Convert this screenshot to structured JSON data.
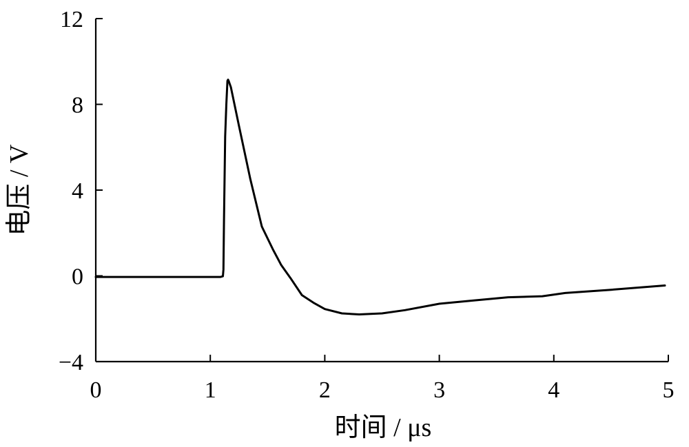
{
  "chart_data": {
    "type": "line",
    "xlabel": "时间 / μs",
    "ylabel": "电压 / V",
    "xlim": [
      0,
      5
    ],
    "ylim": [
      -4,
      12
    ],
    "xticks": [
      0,
      1,
      2,
      3,
      4,
      5
    ],
    "yticks": [
      -4,
      0,
      4,
      8,
      12
    ],
    "xtick_labels": [
      "0",
      "1",
      "2",
      "3",
      "4",
      "5"
    ],
    "ytick_labels": [
      "−4",
      "0",
      "4",
      "8",
      "12"
    ],
    "grid": false,
    "legend": "none",
    "series": [
      {
        "color": "#000000",
        "x": [
          0,
          0.5,
          1.0,
          1.09,
          1.11,
          1.115,
          1.12,
          1.13,
          1.14,
          1.15,
          1.155,
          1.16,
          1.18,
          1.25,
          1.35,
          1.45,
          1.55,
          1.62,
          1.7,
          1.8,
          1.9,
          2.0,
          2.15,
          2.3,
          2.5,
          2.7,
          3.0,
          3.3,
          3.6,
          3.9,
          4.1,
          4.5,
          4.97
        ],
        "y": [
          -0.05,
          -0.05,
          -0.05,
          -0.05,
          -0.02,
          0.3,
          2.6,
          6.5,
          8.0,
          9.1,
          9.15,
          9.1,
          8.8,
          7.0,
          4.5,
          2.3,
          1.2,
          0.5,
          -0.1,
          -0.9,
          -1.25,
          -1.55,
          -1.75,
          -1.8,
          -1.75,
          -1.6,
          -1.3,
          -1.15,
          -1.0,
          -0.95,
          -0.8,
          -0.65,
          -0.45
        ]
      }
    ]
  }
}
